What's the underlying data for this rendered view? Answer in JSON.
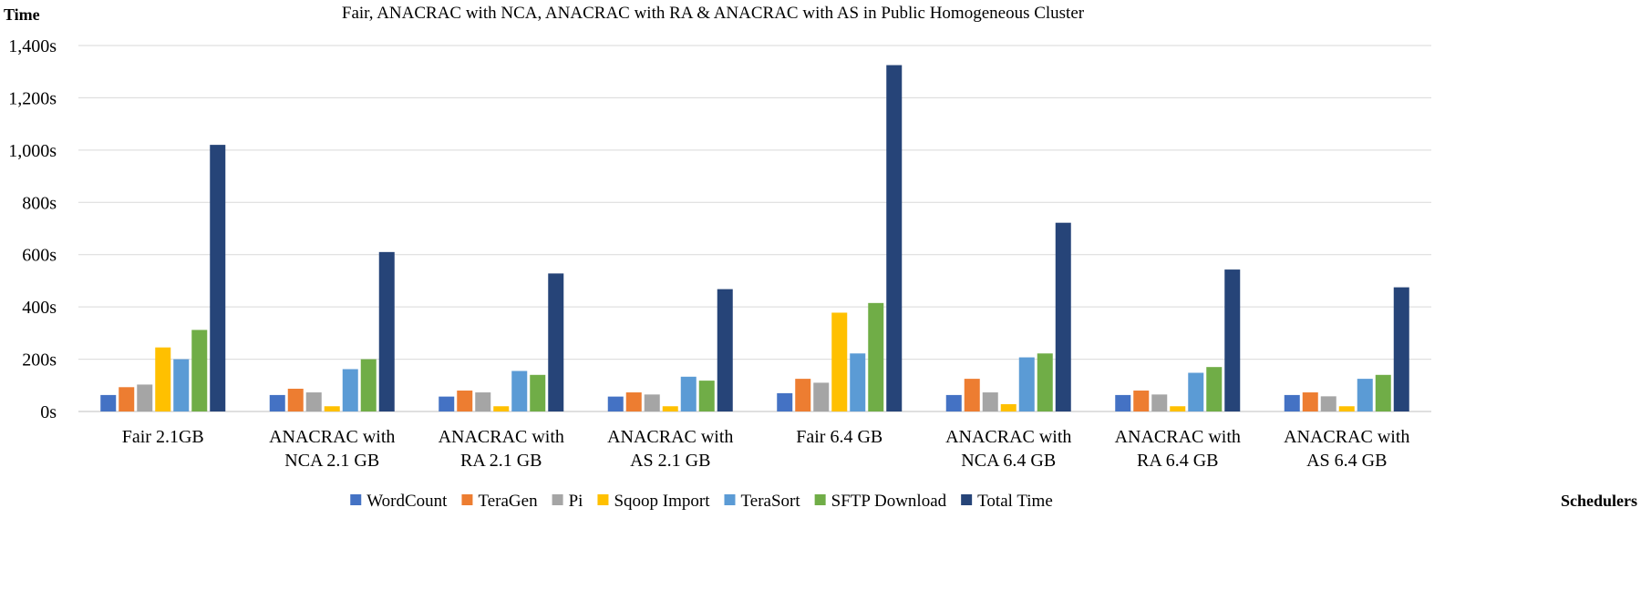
{
  "chart_data": {
    "type": "bar",
    "title": "Fair, ANACRAC with NCA, ANACRAC with RA  & ANACRAC with AS in Public Homogeneous Cluster",
    "ylabel": "Time",
    "xlabel": "Schedulers",
    "ylim": [
      0,
      1400
    ],
    "yticks": [
      0,
      200,
      400,
      600,
      800,
      1000,
      1200,
      1400
    ],
    "ytick_labels": [
      "0s",
      "200s",
      "400s",
      "600s",
      "800s",
      "1,000s",
      "1,200s",
      "1,400s"
    ],
    "grid": true,
    "legend_position": "bottom",
    "categories": [
      [
        "Fair 2.1GB"
      ],
      [
        "ANACRAC with",
        "NCA 2.1 GB"
      ],
      [
        "ANACRAC with",
        "RA 2.1 GB"
      ],
      [
        "ANACRAC with",
        "AS 2.1 GB"
      ],
      [
        "Fair 6.4 GB"
      ],
      [
        "ANACRAC with",
        "NCA 6.4 GB"
      ],
      [
        "ANACRAC with",
        "RA 6.4 GB"
      ],
      [
        "ANACRAC with",
        "AS 6.4 GB"
      ]
    ],
    "series": [
      {
        "name": "WordCount",
        "color": "#4472c4",
        "values": [
          63,
          63,
          57,
          57,
          70,
          63,
          63,
          63
        ]
      },
      {
        "name": "TeraGen",
        "color": "#ed7d31",
        "values": [
          93,
          87,
          80,
          73,
          125,
          125,
          80,
          73
        ]
      },
      {
        "name": "Pi",
        "color": "#a5a5a5",
        "values": [
          103,
          73,
          73,
          65,
          110,
          73,
          65,
          58
        ]
      },
      {
        "name": "Sqoop Import",
        "color": "#ffc000",
        "values": [
          245,
          20,
          20,
          20,
          378,
          28,
          20,
          20
        ]
      },
      {
        "name": "TeraSort",
        "color": "#5b9bd5",
        "values": [
          200,
          162,
          155,
          133,
          222,
          207,
          148,
          125
        ]
      },
      {
        "name": "SFTP Download",
        "color": "#70ad47",
        "values": [
          312,
          200,
          140,
          118,
          415,
          222,
          170,
          140
        ]
      },
      {
        "name": "Total Time",
        "color": "#264478",
        "values": [
          1020,
          610,
          528,
          468,
          1325,
          722,
          543,
          475
        ]
      }
    ]
  }
}
